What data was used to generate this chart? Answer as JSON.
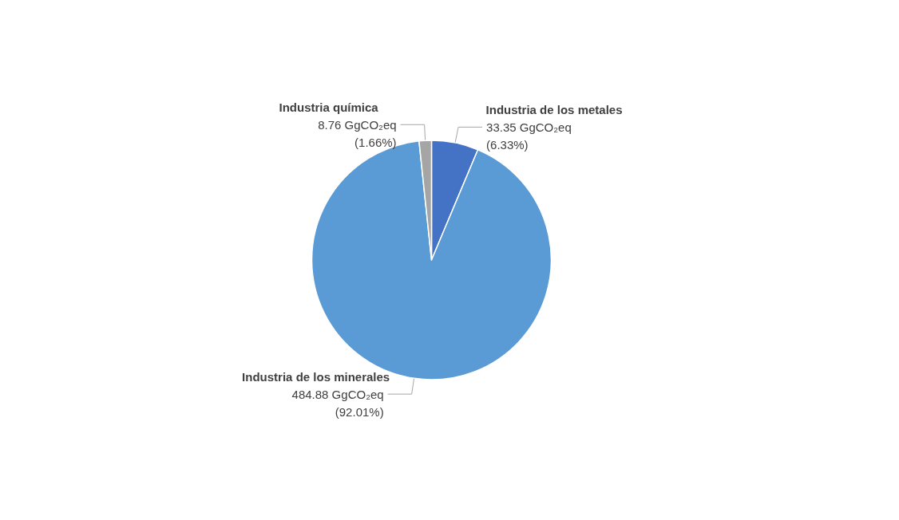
{
  "chart_data": {
    "type": "pie",
    "categories": [
      "Industria de los metales",
      "Industria de los minerales",
      "Industria química"
    ],
    "values": [
      33.35,
      484.88,
      8.76
    ],
    "colors": [
      "#4472c4",
      "#5b9bd5",
      "#a5a5a5"
    ],
    "value_labels": [
      "33.35 GgCO₂eq\n(6.33%)",
      "484.88 GgCO₂eq\n(92.01%)",
      "8.76 GgCO₂eq\n(1.66%)"
    ],
    "legend": false
  }
}
